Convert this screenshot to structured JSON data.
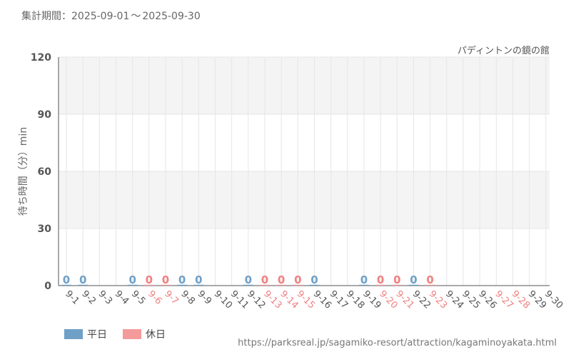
{
  "header": {
    "period_label": "集計期間：",
    "period_start": "2025-09-01",
    "period_sep": "〜",
    "period_end": "2025-09-30",
    "attraction_name": "パディントンの鏡の館"
  },
  "colors": {
    "weekday": "#6fa0c8",
    "holiday": "#f49a9a",
    "holiday_text": "#f08080",
    "axis": "#555555",
    "grid": "#e6e6e6",
    "band": "#f4f4f4"
  },
  "legend": {
    "weekday_label": "平日",
    "holiday_label": "休日"
  },
  "source_url": "https://parksreal.jp/sagamiko-resort/attraction/kagaminoyakata.html",
  "chart_data": {
    "type": "bar",
    "ylabel": "待ち時間（分）min",
    "ylim": [
      0,
      120
    ],
    "yticks": [
      0,
      30,
      60,
      90,
      120
    ],
    "grid": true,
    "legend_position": "bottom-left",
    "categories": [
      "9-1",
      "9-2",
      "9-3",
      "9-4",
      "9-5",
      "9-6",
      "9-7",
      "9-8",
      "9-9",
      "9-10",
      "9-11",
      "9-12",
      "9-13",
      "9-14",
      "9-15",
      "9-16",
      "9-17",
      "9-18",
      "9-19",
      "9-20",
      "9-21",
      "9-22",
      "9-23",
      "9-24",
      "9-25",
      "9-26",
      "9-27",
      "9-28",
      "9-29",
      "9-30"
    ],
    "day_type": [
      "weekday",
      "weekday",
      "weekday",
      "weekday",
      "weekday",
      "holiday",
      "holiday",
      "weekday",
      "weekday",
      "weekday",
      "weekday",
      "weekday",
      "holiday",
      "holiday",
      "holiday",
      "weekday",
      "weekday",
      "weekday",
      "weekday",
      "holiday",
      "holiday",
      "weekday",
      "holiday",
      "weekday",
      "weekday",
      "weekday",
      "holiday",
      "holiday",
      "weekday",
      "weekday"
    ],
    "values": [
      0,
      0,
      null,
      null,
      0,
      0,
      0,
      0,
      0,
      null,
      null,
      0,
      0,
      0,
      0,
      0,
      null,
      null,
      0,
      0,
      0,
      0,
      0,
      null,
      null,
      null,
      null,
      null,
      null,
      null
    ],
    "data_labels": [
      "0",
      "0",
      "",
      "",
      "0",
      "0",
      "0",
      "0",
      "0",
      "",
      "",
      "0",
      "0",
      "0",
      "0",
      "0",
      "",
      "",
      "0",
      "0",
      "0",
      "0",
      "0",
      "",
      "",
      "",
      "",
      "",
      "",
      ""
    ]
  }
}
